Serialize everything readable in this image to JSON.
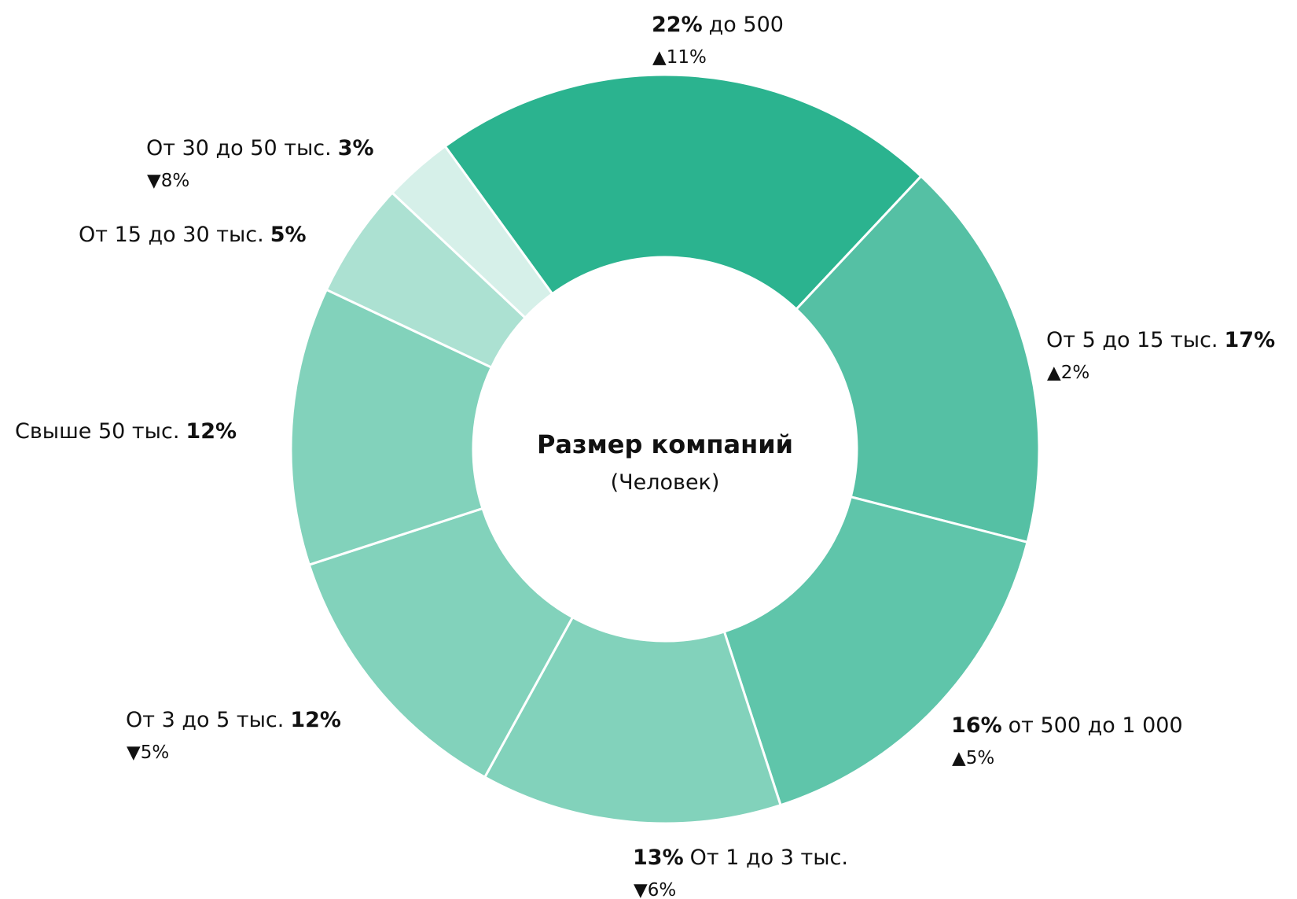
{
  "chart_data": {
    "type": "donut",
    "title": "Размер компаний",
    "subtitle": "(Человек)",
    "categories": [
      "до 500",
      "От 5 до 15 тыс.",
      "от 500 до 1 000",
      "От 1 до 3 тыс.",
      "От 3 до 5 тыс.",
      "Свыше 50 тыс.",
      "От 15 до 30 тыс.",
      "От 30 до 50 тыс."
    ],
    "values": [
      22,
      17,
      16,
      13,
      12,
      12,
      5,
      3
    ],
    "value_labels": [
      "22%",
      "17%",
      "16%",
      "13%",
      "12%",
      "12%",
      "5%",
      "3%"
    ],
    "value_first": [
      true,
      false,
      true,
      true,
      false,
      false,
      false,
      false
    ],
    "changes": [
      11,
      2,
      5,
      -6,
      -5,
      null,
      null,
      -8
    ],
    "change_labels": [
      "▲11%",
      "▲2%",
      "▲5%",
      "▼6%",
      "▼5%",
      null,
      null,
      "▼8%"
    ],
    "colors": [
      "#2bb38f",
      "#55c0a4",
      "#5fc5aa",
      "#82d2bb",
      "#82d2bb",
      "#82d2bb",
      "#acе1d2",
      "#d6f0e9"
    ],
    "up_color": "#1a9a5a",
    "down_color": "#f01a1a"
  }
}
